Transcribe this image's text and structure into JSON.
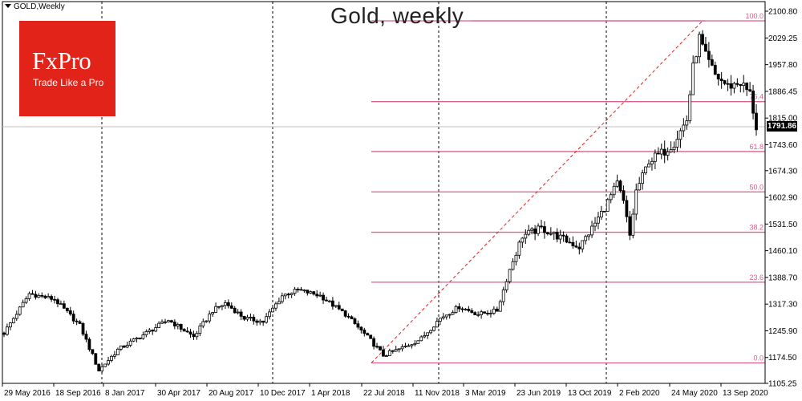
{
  "symbol": "GOLD,Weekly",
  "title": "Gold, weekly",
  "logo": {
    "name": "FxPro",
    "tagline": "Trade Like a Pro"
  },
  "colors": {
    "fib": "#d9608a",
    "fib_text": "#d9608a",
    "candle": "#000000",
    "trend": "#e02020",
    "vline": "#000000",
    "bid_line": "#c0c0c0"
  },
  "chart_data": {
    "type": "candlestick",
    "title": "Gold, weekly",
    "ylim": [
      1105.25,
      2100.8
    ],
    "x_tick_labels": [
      "29 May 2016",
      "18 Sep 2016",
      "8 Jan 2017",
      "30 Apr 2017",
      "20 Aug 2017",
      "10 Dec 2017",
      "1 Apr 2018",
      "22 Jul 2018",
      "11 Nov 2018",
      "3 Mar 2019",
      "23 Jun 2019",
      "13 Oct 2019",
      "2 Feb 2020",
      "24 May 2020",
      "13 Sep 2020"
    ],
    "y_tick_labels": [
      "2100.80",
      "2029.25",
      "1957.80",
      "1886.45",
      "1815.00",
      "1743.60",
      "1674.30",
      "1602.90",
      "1531.50",
      "1460.10",
      "1388.70",
      "1317.30",
      "1245.90",
      "1174.50",
      "1105.25"
    ],
    "y_tick_values": [
      2100.8,
      2029.25,
      1957.8,
      1886.45,
      1815.0,
      1743.6,
      1674.3,
      1602.9,
      1531.5,
      1460.1,
      1388.7,
      1317.3,
      1245.9,
      1174.5,
      1105.25
    ],
    "current_price": "1791.86",
    "current_price_value": 1791.86,
    "fibonacci": {
      "low": 1160.0,
      "high": 2075.0,
      "levels": [
        {
          "label": "100.0",
          "ratio": 1.0
        },
        {
          "label": "76.4",
          "ratio": 0.764
        },
        {
          "label": "61.8",
          "ratio": 0.618
        },
        {
          "label": "50.0",
          "ratio": 0.5
        },
        {
          "label": "38.2",
          "ratio": 0.382
        },
        {
          "label": "23.6",
          "ratio": 0.236
        },
        {
          "label": "0.0",
          "ratio": 0.0
        }
      ]
    },
    "trendline": {
      "from": [
        1160.0
      ],
      "to": [
        2075.0
      ]
    },
    "vertical_lines": [
      "8 Jan 2017",
      "10 Dec 2017",
      "11 Nov 2018",
      "13 Oct 2019"
    ],
    "anchors": [
      {
        "i": 0,
        "v": 1240
      },
      {
        "i": 8,
        "v": 1345
      },
      {
        "i": 16,
        "v": 1330
      },
      {
        "i": 24,
        "v": 1260
      },
      {
        "i": 30,
        "v": 1140
      },
      {
        "i": 36,
        "v": 1195
      },
      {
        "i": 45,
        "v": 1240
      },
      {
        "i": 52,
        "v": 1275
      },
      {
        "i": 60,
        "v": 1230
      },
      {
        "i": 66,
        "v": 1300
      },
      {
        "i": 70,
        "v": 1320
      },
      {
        "i": 76,
        "v": 1280
      },
      {
        "i": 82,
        "v": 1270
      },
      {
        "i": 88,
        "v": 1340
      },
      {
        "i": 93,
        "v": 1355
      },
      {
        "i": 100,
        "v": 1340
      },
      {
        "i": 108,
        "v": 1290
      },
      {
        "i": 116,
        "v": 1220
      },
      {
        "i": 120,
        "v": 1180
      },
      {
        "i": 126,
        "v": 1200
      },
      {
        "i": 132,
        "v": 1225
      },
      {
        "i": 138,
        "v": 1280
      },
      {
        "i": 144,
        "v": 1310
      },
      {
        "i": 150,
        "v": 1290
      },
      {
        "i": 156,
        "v": 1300
      },
      {
        "i": 160,
        "v": 1410
      },
      {
        "i": 164,
        "v": 1500
      },
      {
        "i": 170,
        "v": 1520
      },
      {
        "i": 176,
        "v": 1495
      },
      {
        "i": 182,
        "v": 1470
      },
      {
        "i": 186,
        "v": 1520
      },
      {
        "i": 190,
        "v": 1575
      },
      {
        "i": 194,
        "v": 1640
      },
      {
        "i": 196,
        "v": 1590
      },
      {
        "i": 198,
        "v": 1500
      },
      {
        "i": 200,
        "v": 1620
      },
      {
        "i": 204,
        "v": 1700
      },
      {
        "i": 208,
        "v": 1720
      },
      {
        "i": 212,
        "v": 1750
      },
      {
        "i": 216,
        "v": 1810
      },
      {
        "i": 218,
        "v": 1950
      },
      {
        "i": 220,
        "v": 2030
      },
      {
        "i": 222,
        "v": 1980
      },
      {
        "i": 225,
        "v": 1930
      },
      {
        "i": 229,
        "v": 1900
      },
      {
        "i": 233,
        "v": 1910
      },
      {
        "i": 236,
        "v": 1880
      },
      {
        "i": 238,
        "v": 1790
      }
    ]
  }
}
